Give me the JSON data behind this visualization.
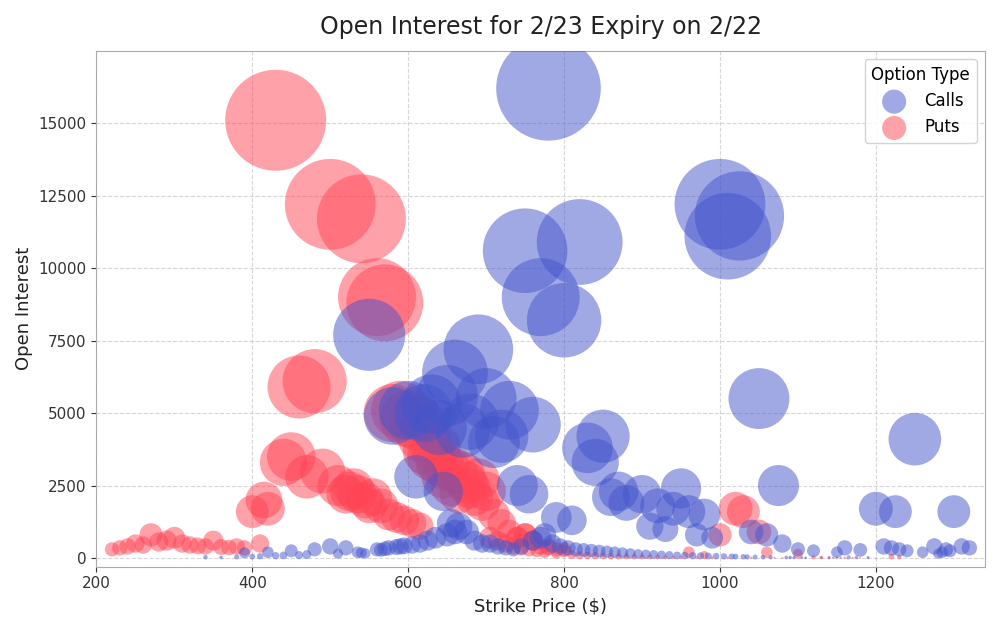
{
  "title": "Open Interest for 2/23 Expiry on 2/22",
  "xlabel": "Strike Price ($)",
  "ylabel": "Open Interest",
  "xlim": [
    200,
    1340
  ],
  "ylim": [
    -300,
    17500
  ],
  "call_color": "#4455cc",
  "put_color": "#ff4455",
  "alpha": 0.5,
  "size_scale": 0.35,
  "calls": [
    {
      "strike": 550,
      "oi": 7700
    },
    {
      "strike": 600,
      "oi": 5100
    },
    {
      "strike": 620,
      "oi": 5000
    },
    {
      "strike": 630,
      "oi": 5300
    },
    {
      "strike": 640,
      "oi": 4500
    },
    {
      "strike": 650,
      "oi": 5600
    },
    {
      "strike": 660,
      "oi": 6400
    },
    {
      "strike": 670,
      "oi": 4400
    },
    {
      "strike": 680,
      "oi": 4700
    },
    {
      "strike": 690,
      "oi": 7200
    },
    {
      "strike": 700,
      "oi": 5500
    },
    {
      "strike": 710,
      "oi": 4000
    },
    {
      "strike": 720,
      "oi": 4200
    },
    {
      "strike": 730,
      "oi": 5100
    },
    {
      "strike": 750,
      "oi": 10600
    },
    {
      "strike": 760,
      "oi": 4600
    },
    {
      "strike": 770,
      "oi": 9000
    },
    {
      "strike": 780,
      "oi": 16200
    },
    {
      "strike": 800,
      "oi": 8200
    },
    {
      "strike": 820,
      "oi": 10900
    },
    {
      "strike": 830,
      "oi": 3800
    },
    {
      "strike": 840,
      "oi": 3300
    },
    {
      "strike": 850,
      "oi": 4200
    },
    {
      "strike": 860,
      "oi": 2100
    },
    {
      "strike": 870,
      "oi": 2300
    },
    {
      "strike": 880,
      "oi": 1900
    },
    {
      "strike": 900,
      "oi": 2200
    },
    {
      "strike": 920,
      "oi": 1800
    },
    {
      "strike": 940,
      "oi": 1700
    },
    {
      "strike": 950,
      "oi": 2400
    },
    {
      "strike": 960,
      "oi": 1600
    },
    {
      "strike": 980,
      "oi": 1500
    },
    {
      "strike": 1000,
      "oi": 12200
    },
    {
      "strike": 1010,
      "oi": 11100
    },
    {
      "strike": 1025,
      "oi": 11800
    },
    {
      "strike": 1050,
      "oi": 5500
    },
    {
      "strike": 1060,
      "oi": 800
    },
    {
      "strike": 1075,
      "oi": 2500
    },
    {
      "strike": 1080,
      "oi": 500
    },
    {
      "strike": 1100,
      "oi": 300
    },
    {
      "strike": 1120,
      "oi": 250
    },
    {
      "strike": 1150,
      "oi": 200
    },
    {
      "strike": 1200,
      "oi": 1700
    },
    {
      "strike": 1225,
      "oi": 1600
    },
    {
      "strike": 1250,
      "oi": 4100
    },
    {
      "strike": 1275,
      "oi": 400
    },
    {
      "strike": 1300,
      "oi": 1600
    },
    {
      "strike": 500,
      "oi": 400
    },
    {
      "strike": 520,
      "oi": 350
    },
    {
      "strike": 480,
      "oi": 300
    },
    {
      "strike": 450,
      "oi": 250
    },
    {
      "strike": 420,
      "oi": 200
    },
    {
      "strike": 390,
      "oi": 180
    },
    {
      "strike": 580,
      "oi": 4900
    },
    {
      "strike": 610,
      "oi": 2800
    },
    {
      "strike": 645,
      "oi": 2300
    },
    {
      "strike": 655,
      "oi": 1200
    },
    {
      "strike": 665,
      "oi": 1100
    },
    {
      "strike": 675,
      "oi": 900
    },
    {
      "strike": 685,
      "oi": 600
    },
    {
      "strike": 695,
      "oi": 500
    },
    {
      "strike": 740,
      "oi": 2500
    },
    {
      "strike": 755,
      "oi": 2200
    },
    {
      "strike": 790,
      "oi": 1400
    },
    {
      "strike": 810,
      "oi": 1300
    },
    {
      "strike": 910,
      "oi": 1100
    },
    {
      "strike": 930,
      "oi": 1000
    },
    {
      "strike": 970,
      "oi": 800
    },
    {
      "strike": 990,
      "oi": 700
    },
    {
      "strike": 1040,
      "oi": 900
    },
    {
      "strike": 1160,
      "oi": 350
    },
    {
      "strike": 1180,
      "oi": 280
    },
    {
      "strike": 340,
      "oi": 30
    },
    {
      "strike": 360,
      "oi": 20
    },
    {
      "strike": 380,
      "oi": 40
    },
    {
      "strike": 400,
      "oi": 50
    },
    {
      "strike": 410,
      "oi": 60
    },
    {
      "strike": 430,
      "oi": 80
    },
    {
      "strike": 440,
      "oi": 90
    },
    {
      "strike": 460,
      "oi": 100
    },
    {
      "strike": 470,
      "oi": 120
    },
    {
      "strike": 510,
      "oi": 150
    },
    {
      "strike": 535,
      "oi": 200
    },
    {
      "strike": 540,
      "oi": 180
    },
    {
      "strike": 545,
      "oi": 160
    },
    {
      "strike": 560,
      "oi": 300
    },
    {
      "strike": 565,
      "oi": 280
    },
    {
      "strike": 570,
      "oi": 320
    },
    {
      "strike": 575,
      "oi": 350
    },
    {
      "strike": 585,
      "oi": 380
    },
    {
      "strike": 590,
      "oi": 400
    },
    {
      "strike": 595,
      "oi": 420
    },
    {
      "strike": 605,
      "oi": 450
    },
    {
      "strike": 615,
      "oi": 500
    },
    {
      "strike": 625,
      "oi": 600
    },
    {
      "strike": 635,
      "oi": 700
    },
    {
      "strike": 650,
      "oi": 800
    },
    {
      "strike": 660,
      "oi": 900
    },
    {
      "strike": 705,
      "oi": 500
    },
    {
      "strike": 715,
      "oi": 400
    },
    {
      "strike": 725,
      "oi": 350
    },
    {
      "strike": 735,
      "oi": 300
    },
    {
      "strike": 745,
      "oi": 400
    },
    {
      "strike": 760,
      "oi": 600
    },
    {
      "strike": 770,
      "oi": 700
    },
    {
      "strike": 775,
      "oi": 800
    },
    {
      "strike": 785,
      "oi": 500
    },
    {
      "strike": 795,
      "oi": 400
    },
    {
      "strike": 805,
      "oi": 350
    },
    {
      "strike": 815,
      "oi": 300
    },
    {
      "strike": 825,
      "oi": 280
    },
    {
      "strike": 835,
      "oi": 260
    },
    {
      "strike": 845,
      "oi": 240
    },
    {
      "strike": 855,
      "oi": 220
    },
    {
      "strike": 865,
      "oi": 200
    },
    {
      "strike": 875,
      "oi": 180
    },
    {
      "strike": 885,
      "oi": 160
    },
    {
      "strike": 895,
      "oi": 140
    },
    {
      "strike": 905,
      "oi": 130
    },
    {
      "strike": 915,
      "oi": 120
    },
    {
      "strike": 925,
      "oi": 110
    },
    {
      "strike": 935,
      "oi": 100
    },
    {
      "strike": 945,
      "oi": 90
    },
    {
      "strike": 955,
      "oi": 85
    },
    {
      "strike": 965,
      "oi": 80
    },
    {
      "strike": 975,
      "oi": 75
    },
    {
      "strike": 985,
      "oi": 70
    },
    {
      "strike": 995,
      "oi": 65
    },
    {
      "strike": 1005,
      "oi": 60
    },
    {
      "strike": 1015,
      "oi": 55
    },
    {
      "strike": 1020,
      "oi": 50
    },
    {
      "strike": 1030,
      "oi": 45
    },
    {
      "strike": 1035,
      "oi": 40
    },
    {
      "strike": 1045,
      "oi": 35
    },
    {
      "strike": 1055,
      "oi": 30
    },
    {
      "strike": 1065,
      "oi": 25
    },
    {
      "strike": 1085,
      "oi": 20
    },
    {
      "strike": 1090,
      "oi": 18
    },
    {
      "strike": 1095,
      "oi": 15
    },
    {
      "strike": 1105,
      "oi": 12
    },
    {
      "strike": 1110,
      "oi": 10
    },
    {
      "strike": 1130,
      "oi": 8
    },
    {
      "strike": 1140,
      "oi": 7
    },
    {
      "strike": 1145,
      "oi": 6
    },
    {
      "strike": 1155,
      "oi": 5
    },
    {
      "strike": 1165,
      "oi": 25
    },
    {
      "strike": 1175,
      "oi": 20
    },
    {
      "strike": 1190,
      "oi": 15
    },
    {
      "strike": 1210,
      "oi": 400
    },
    {
      "strike": 1220,
      "oi": 350
    },
    {
      "strike": 1230,
      "oi": 300
    },
    {
      "strike": 1240,
      "oi": 250
    },
    {
      "strike": 1260,
      "oi": 200
    },
    {
      "strike": 1280,
      "oi": 150
    },
    {
      "strike": 1285,
      "oi": 200
    },
    {
      "strike": 1290,
      "oi": 300
    },
    {
      "strike": 1295,
      "oi": 250
    },
    {
      "strike": 1310,
      "oi": 400
    },
    {
      "strike": 1320,
      "oi": 350
    }
  ],
  "puts": [
    {
      "strike": 430,
      "oi": 15100
    },
    {
      "strike": 500,
      "oi": 12200
    },
    {
      "strike": 540,
      "oi": 11700
    },
    {
      "strike": 560,
      "oi": 9000
    },
    {
      "strike": 570,
      "oi": 8800
    },
    {
      "strike": 580,
      "oi": 5000
    },
    {
      "strike": 590,
      "oi": 5100
    },
    {
      "strike": 600,
      "oi": 4800
    },
    {
      "strike": 610,
      "oi": 4700
    },
    {
      "strike": 620,
      "oi": 4200
    },
    {
      "strike": 625,
      "oi": 3700
    },
    {
      "strike": 630,
      "oi": 3500
    },
    {
      "strike": 635,
      "oi": 3800
    },
    {
      "strike": 640,
      "oi": 3300
    },
    {
      "strike": 645,
      "oi": 2800
    },
    {
      "strike": 650,
      "oi": 3100
    },
    {
      "strike": 655,
      "oi": 2500
    },
    {
      "strike": 660,
      "oi": 3000
    },
    {
      "strike": 665,
      "oi": 2200
    },
    {
      "strike": 670,
      "oi": 2900
    },
    {
      "strike": 675,
      "oi": 2600
    },
    {
      "strike": 680,
      "oi": 2400
    },
    {
      "strike": 685,
      "oi": 2100
    },
    {
      "strike": 690,
      "oi": 2700
    },
    {
      "strike": 695,
      "oi": 1900
    },
    {
      "strike": 700,
      "oi": 2300
    },
    {
      "strike": 710,
      "oi": 1500
    },
    {
      "strike": 720,
      "oi": 1200
    },
    {
      "strike": 730,
      "oi": 900
    },
    {
      "strike": 740,
      "oi": 700
    },
    {
      "strike": 750,
      "oi": 800
    },
    {
      "strike": 760,
      "oi": 600
    },
    {
      "strike": 780,
      "oi": 400
    },
    {
      "strike": 800,
      "oi": 300
    },
    {
      "strike": 480,
      "oi": 6100
    },
    {
      "strike": 460,
      "oi": 5900
    },
    {
      "strike": 450,
      "oi": 3500
    },
    {
      "strike": 440,
      "oi": 3300
    },
    {
      "strike": 520,
      "oi": 2200
    },
    {
      "strike": 530,
      "oi": 2400
    },
    {
      "strike": 555,
      "oi": 2100
    },
    {
      "strike": 565,
      "oi": 1800
    },
    {
      "strike": 350,
      "oi": 600
    },
    {
      "strike": 300,
      "oi": 700
    },
    {
      "strike": 270,
      "oi": 800
    },
    {
      "strike": 250,
      "oi": 500
    },
    {
      "strike": 240,
      "oi": 400
    },
    {
      "strike": 380,
      "oi": 400
    },
    {
      "strike": 400,
      "oi": 1600
    },
    {
      "strike": 415,
      "oi": 2000
    },
    {
      "strike": 420,
      "oi": 1700
    },
    {
      "strike": 1000,
      "oi": 800
    },
    {
      "strike": 1020,
      "oi": 1700
    },
    {
      "strike": 1030,
      "oi": 1600
    },
    {
      "strike": 1050,
      "oi": 900
    },
    {
      "strike": 1060,
      "oi": 200
    },
    {
      "strike": 1100,
      "oi": 150
    },
    {
      "strike": 960,
      "oi": 200
    },
    {
      "strike": 980,
      "oi": 100
    },
    {
      "strike": 230,
      "oi": 350
    },
    {
      "strike": 220,
      "oi": 300
    },
    {
      "strike": 260,
      "oi": 450
    },
    {
      "strike": 280,
      "oi": 550
    },
    {
      "strike": 290,
      "oi": 600
    },
    {
      "strike": 310,
      "oi": 500
    },
    {
      "strike": 320,
      "oi": 450
    },
    {
      "strike": 330,
      "oi": 420
    },
    {
      "strike": 340,
      "oi": 400
    },
    {
      "strike": 360,
      "oi": 380
    },
    {
      "strike": 370,
      "oi": 360
    },
    {
      "strike": 390,
      "oi": 350
    },
    {
      "strike": 410,
      "oi": 500
    },
    {
      "strike": 470,
      "oi": 2800
    },
    {
      "strike": 490,
      "oi": 3000
    },
    {
      "strike": 510,
      "oi": 2500
    },
    {
      "strike": 525,
      "oi": 2300
    },
    {
      "strike": 535,
      "oi": 2200
    },
    {
      "strike": 545,
      "oi": 2000
    },
    {
      "strike": 550,
      "oi": 1800
    },
    {
      "strike": 575,
      "oi": 1500
    },
    {
      "strike": 585,
      "oi": 1400
    },
    {
      "strike": 595,
      "oi": 1300
    },
    {
      "strike": 605,
      "oi": 1200
    },
    {
      "strike": 615,
      "oi": 1100
    },
    {
      "strike": 705,
      "oi": 700
    },
    {
      "strike": 715,
      "oi": 600
    },
    {
      "strike": 725,
      "oi": 500
    },
    {
      "strike": 735,
      "oi": 400
    },
    {
      "strike": 745,
      "oi": 350
    },
    {
      "strike": 755,
      "oi": 300
    },
    {
      "strike": 765,
      "oi": 250
    },
    {
      "strike": 775,
      "oi": 200
    },
    {
      "strike": 790,
      "oi": 150
    },
    {
      "strike": 810,
      "oi": 120
    },
    {
      "strike": 820,
      "oi": 100
    },
    {
      "strike": 830,
      "oi": 90
    },
    {
      "strike": 840,
      "oi": 80
    },
    {
      "strike": 850,
      "oi": 70
    },
    {
      "strike": 860,
      "oi": 60
    },
    {
      "strike": 870,
      "oi": 55
    },
    {
      "strike": 880,
      "oi": 50
    },
    {
      "strike": 890,
      "oi": 45
    },
    {
      "strike": 900,
      "oi": 40
    },
    {
      "strike": 910,
      "oi": 35
    },
    {
      "strike": 920,
      "oi": 30
    },
    {
      "strike": 930,
      "oi": 25
    },
    {
      "strike": 940,
      "oi": 20
    },
    {
      "strike": 950,
      "oi": 18
    },
    {
      "strike": 970,
      "oi": 15
    },
    {
      "strike": 990,
      "oi": 12
    },
    {
      "strike": 1010,
      "oi": 10
    },
    {
      "strike": 1040,
      "oi": 8
    },
    {
      "strike": 1070,
      "oi": 6
    },
    {
      "strike": 1080,
      "oi": 5
    },
    {
      "strike": 1090,
      "oi": 4
    },
    {
      "strike": 1110,
      "oi": 3
    },
    {
      "strike": 1120,
      "oi": 25
    },
    {
      "strike": 1130,
      "oi": 20
    },
    {
      "strike": 1140,
      "oi": 15
    },
    {
      "strike": 1150,
      "oi": 10
    },
    {
      "strike": 1160,
      "oi": 8
    },
    {
      "strike": 1170,
      "oi": 6
    },
    {
      "strike": 1180,
      "oi": 5
    },
    {
      "strike": 1190,
      "oi": 4
    },
    {
      "strike": 1200,
      "oi": 3
    },
    {
      "strike": 1210,
      "oi": 2
    },
    {
      "strike": 1220,
      "oi": 50
    },
    {
      "strike": 1230,
      "oi": 30
    },
    {
      "strike": 740,
      "oi": 700
    },
    {
      "strike": 750,
      "oi": 800
    },
    {
      "strike": 760,
      "oi": 600
    },
    {
      "strike": 770,
      "oi": 400
    },
    {
      "strike": 780,
      "oi": 350
    },
    {
      "strike": 790,
      "oi": 300
    },
    {
      "strike": 800,
      "oi": 250
    }
  ]
}
